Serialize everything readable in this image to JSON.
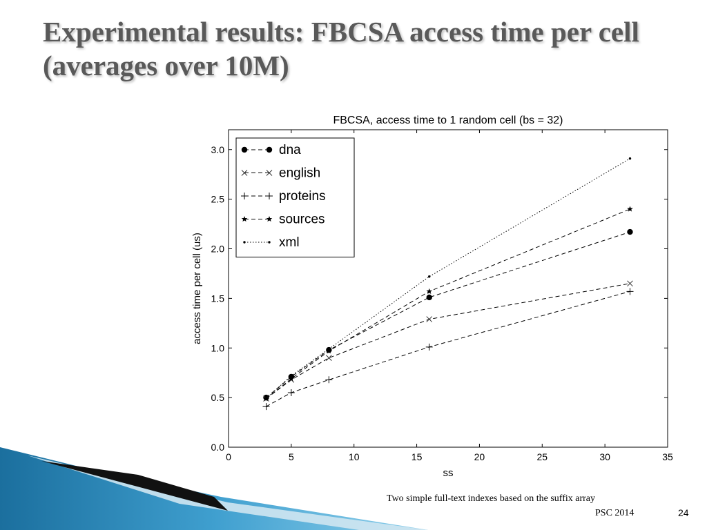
{
  "slide": {
    "title": "Experimental results: FBCSA access time per cell (averages over 10M)",
    "footer_line1": "Two simple full-text indexes based on the suffix array",
    "footer_line2": "PSC 2014",
    "page_number": "24"
  },
  "chart_data": {
    "type": "line",
    "title": "FBCSA, access time to 1 random cell (bs = 32)",
    "xlabel": "ss",
    "ylabel": "access time per cell (us)",
    "xlim": [
      0,
      35
    ],
    "ylim": [
      0,
      3.2
    ],
    "xticks": [
      0,
      5,
      10,
      15,
      20,
      25,
      30,
      35
    ],
    "yticks": [
      "0.0",
      "0.5",
      "1.0",
      "1.5",
      "2.0",
      "2.5",
      "3.0"
    ],
    "grid": false,
    "legend_position": "top-left",
    "x": [
      3,
      5,
      8,
      16,
      32
    ],
    "series": [
      {
        "name": "dna",
        "marker": "filled-circle",
        "line": "dashed",
        "values": [
          0.5,
          0.71,
          0.98,
          1.51,
          2.17
        ]
      },
      {
        "name": "english",
        "marker": "x",
        "line": "dashed",
        "values": [
          0.49,
          0.68,
          0.9,
          1.29,
          1.65
        ]
      },
      {
        "name": "proteins",
        "marker": "plus",
        "line": "dashed",
        "values": [
          0.41,
          0.55,
          0.68,
          1.01,
          1.57
        ]
      },
      {
        "name": "sources",
        "marker": "star",
        "line": "dashed",
        "values": [
          0.49,
          0.69,
          0.97,
          1.57,
          2.4
        ]
      },
      {
        "name": "xml",
        "marker": "dot",
        "line": "dotted",
        "values": [
          0.49,
          0.72,
          0.99,
          1.72,
          2.91
        ]
      }
    ]
  }
}
